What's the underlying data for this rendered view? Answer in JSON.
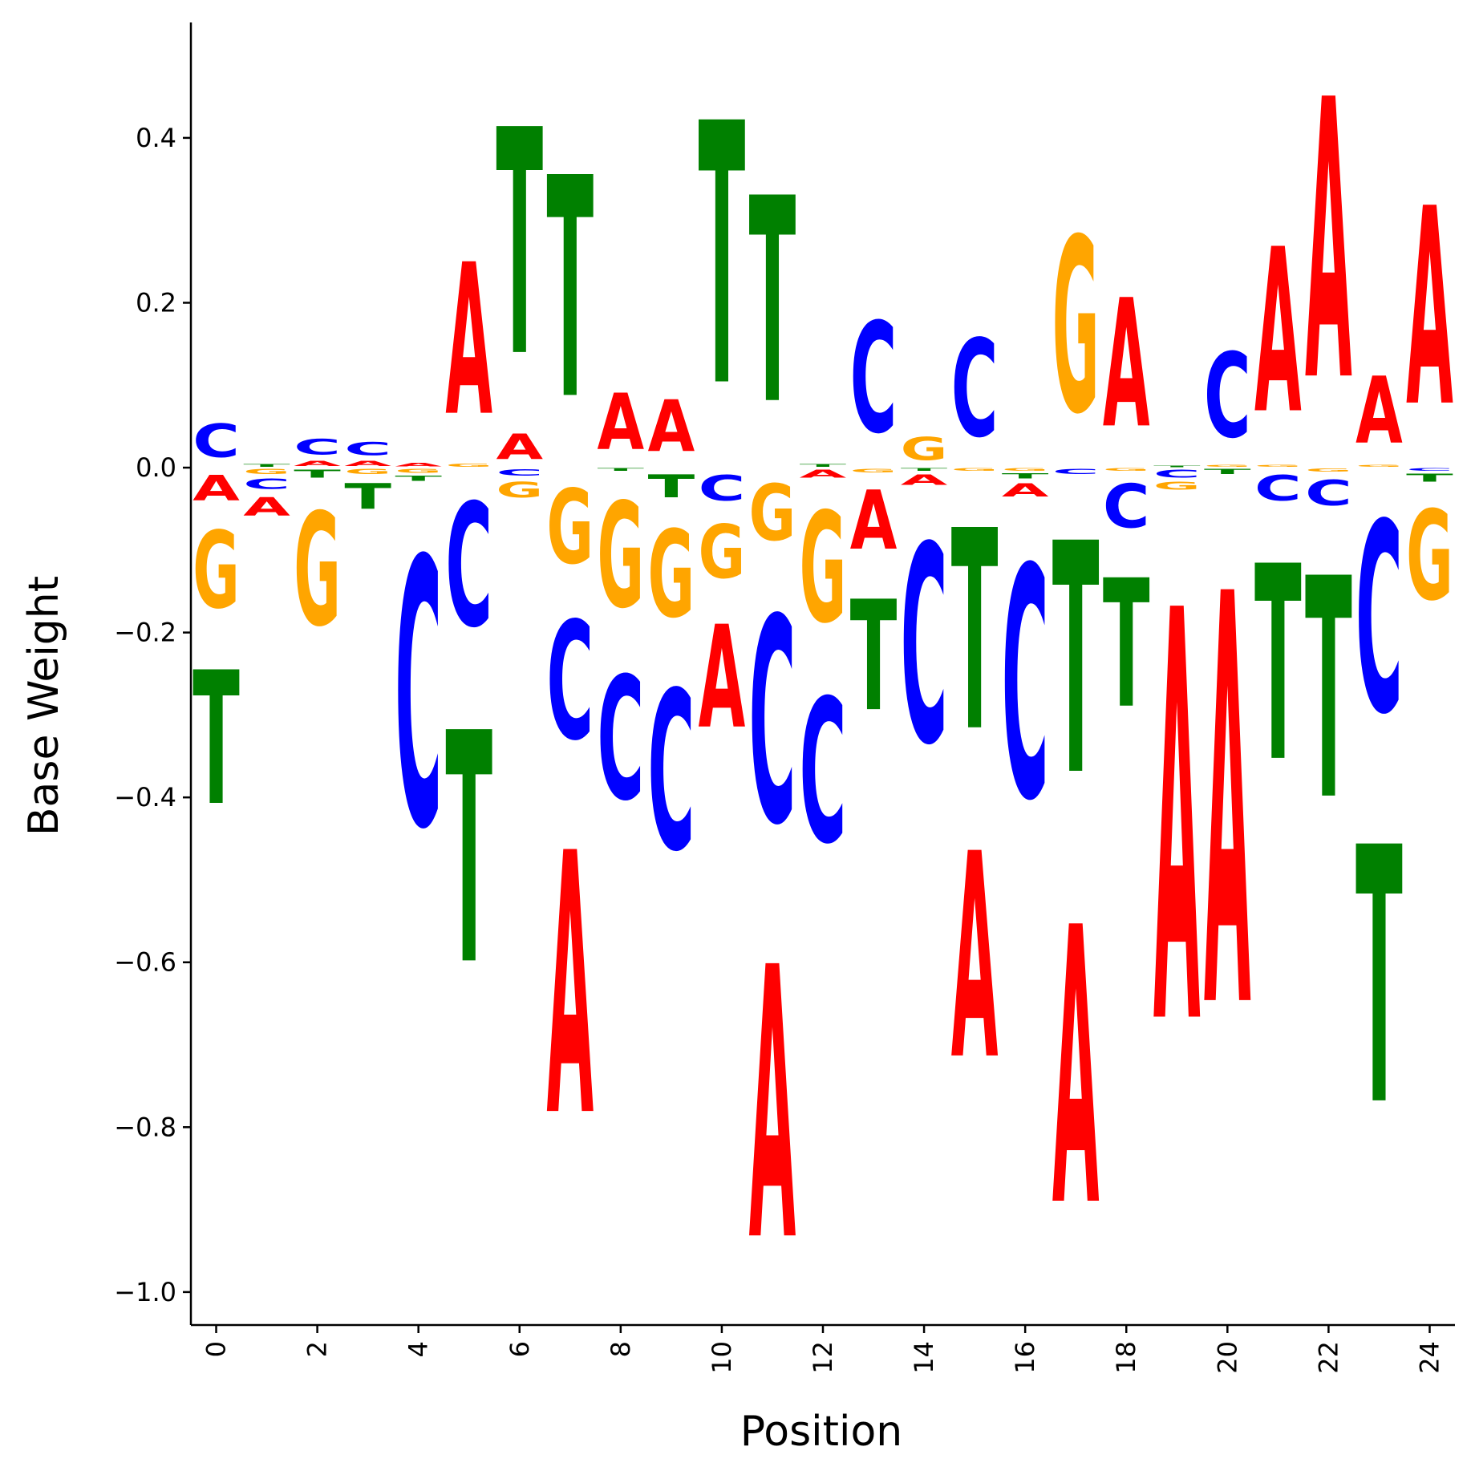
{
  "chart_data": {
    "type": "sequence-logo",
    "title": "",
    "xlabel": "Position",
    "ylabel": "Base Weight",
    "xlim": [
      -0.5,
      24.5
    ],
    "ylim": [
      -1.04,
      0.54
    ],
    "x_ticks": [
      0,
      2,
      4,
      6,
      8,
      10,
      12,
      14,
      16,
      18,
      20,
      22,
      24
    ],
    "y_ticks": [
      -1.0,
      -0.8,
      -0.6,
      -0.4,
      -0.2,
      0.0,
      0.2,
      0.4
    ],
    "y_tick_labels": [
      "−1.0",
      "−0.8",
      "−0.6",
      "−0.4",
      "−0.2",
      "0.0",
      "0.2",
      "0.4"
    ],
    "colors": {
      "A": "#ff0000",
      "C": "#0000ff",
      "G": "#ffa500",
      "T": "#008000"
    },
    "positions": [
      {
        "pos": 0,
        "weights": {
          "A": -0.05,
          "C": 0.065,
          "G": -0.15,
          "T": -0.26
        }
      },
      {
        "pos": 1,
        "weights": {
          "A": -0.035,
          "C": -0.02,
          "G": -0.01,
          "T": 0.005
        }
      },
      {
        "pos": 2,
        "weights": {
          "A": 0.01,
          "C": 0.03,
          "G": -0.22,
          "T": -0.015
        }
      },
      {
        "pos": 3,
        "weights": {
          "A": 0.01,
          "C": 0.025,
          "G": -0.01,
          "T": -0.05
        }
      },
      {
        "pos": 4,
        "weights": {
          "A": 0.007,
          "C": -0.52,
          "G": -0.008,
          "T": -0.01
        }
      },
      {
        "pos": 5,
        "weights": {
          "A": 0.295,
          "C": -0.24,
          "G": 0.006,
          "T": -0.45
        }
      },
      {
        "pos": 6,
        "weights": {
          "A": 0.05,
          "C": -0.012,
          "G": -0.03,
          "T": 0.44
        }
      },
      {
        "pos": 7,
        "weights": {
          "A": -0.51,
          "C": -0.23,
          "G": -0.145,
          "T": 0.43
        }
      },
      {
        "pos": 8,
        "weights": {
          "A": 0.11,
          "C": -0.24,
          "G": -0.205,
          "T": -0.005
        }
      },
      {
        "pos": 9,
        "weights": {
          "A": 0.1,
          "C": -0.31,
          "G": -0.17,
          "T": -0.045
        }
      },
      {
        "pos": 10,
        "weights": {
          "A": -0.2,
          "C": -0.05,
          "G": -0.105,
          "T": 0.51
        }
      },
      {
        "pos": 11,
        "weights": {
          "A": -0.53,
          "C": -0.4,
          "G": -0.11,
          "T": 0.4
        }
      },
      {
        "pos": 12,
        "weights": {
          "A": -0.015,
          "C": -0.28,
          "G": -0.215,
          "T": 0.005
        }
      },
      {
        "pos": 13,
        "weights": {
          "A": -0.115,
          "C": 0.215,
          "G": -0.007,
          "T": -0.215
        }
      },
      {
        "pos": 14,
        "weights": {
          "A": -0.02,
          "C": -0.385,
          "G": 0.045,
          "T": -0.005
        }
      },
      {
        "pos": 15,
        "weights": {
          "A": -0.4,
          "C": 0.19,
          "G": -0.005,
          "T": -0.39
        }
      },
      {
        "pos": 16,
        "weights": {
          "A": -0.025,
          "C": -0.45,
          "G": -0.005,
          "T": -0.01
        }
      },
      {
        "pos": 17,
        "weights": {
          "A": -0.54,
          "C": -0.01,
          "G": 0.34,
          "T": -0.45
        }
      },
      {
        "pos": 18,
        "weights": {
          "A": 0.25,
          "C": -0.085,
          "G": -0.005,
          "T": -0.25
        }
      },
      {
        "pos": 19,
        "weights": {
          "A": -0.8,
          "C": -0.015,
          "G": -0.015,
          "T": 0.003
        }
      },
      {
        "pos": 20,
        "weights": {
          "A": -0.8,
          "C": 0.165,
          "G": 0.004,
          "T": -0.01
        }
      },
      {
        "pos": 21,
        "weights": {
          "A": 0.32,
          "C": -0.05,
          "G": 0.004,
          "T": -0.38
        }
      },
      {
        "pos": 22,
        "weights": {
          "A": 0.545,
          "C": -0.05,
          "G": -0.006,
          "T": -0.43
        }
      },
      {
        "pos": 23,
        "weights": {
          "A": 0.13,
          "C": -0.37,
          "G": 0.004,
          "T": -0.5
        }
      },
      {
        "pos": 24,
        "weights": {
          "A": 0.385,
          "C": -0.005,
          "G": -0.175,
          "T": -0.015
        }
      }
    ]
  }
}
